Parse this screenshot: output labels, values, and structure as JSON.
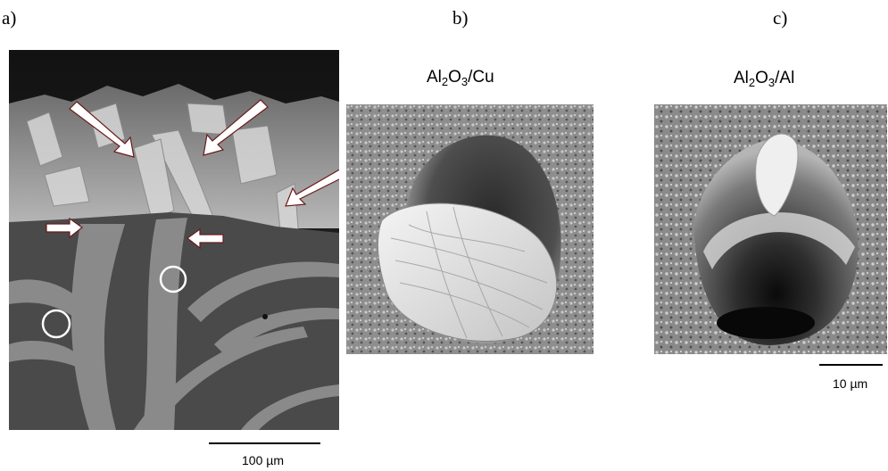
{
  "panels": [
    {
      "label": "a)",
      "title": "",
      "scale": "100 µm"
    },
    {
      "label": "b)",
      "title_main": "Al",
      "title_sub1": "2",
      "title_mid": "O",
      "title_sub2": "3",
      "title_end": "/Cu",
      "scale": ""
    },
    {
      "label": "c)",
      "title_main": "Al",
      "title_sub1": "2",
      "title_mid": "O",
      "title_sub2": "3",
      "title_end": "/Al",
      "scale": "10 µm"
    }
  ],
  "colors": {
    "background": "#ffffff",
    "bulk_dark": "#4a4a4a",
    "bulk_light": "#8a8a8a",
    "surface_top": "#1a1a1a",
    "arrow_fill": "#ffffff"
  }
}
